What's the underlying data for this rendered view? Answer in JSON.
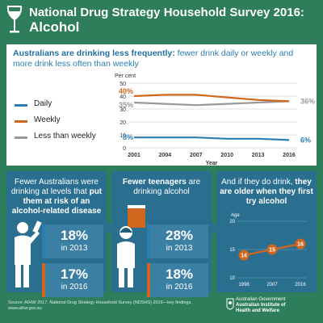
{
  "header": {
    "title_line1": "National Drug Strategy Household Survey 2016:",
    "title_line2": "Alcohol"
  },
  "top_panel": {
    "headline_bold": "Australians are drinking less frequently:",
    "headline_rest": "fewer drink daily or weekly and more drink less often than weekly"
  },
  "legend": {
    "daily": "Daily",
    "weekly": "Weekly",
    "less_than_weekly": "Less than weekly"
  },
  "colors": {
    "daily": "#2c7db3",
    "weekly": "#d1661f",
    "less_than_weekly": "#999999",
    "background": "#2e7d5b"
  },
  "panel1": {
    "text_normal": "Fewer Australians were drinking at levels that",
    "text_bold": "put them at risk of an alcohol-related disease",
    "stat1_value": "18%",
    "stat1_year": "in 2013",
    "stat2_value": "17%",
    "stat2_year": "in 2016"
  },
  "panel2": {
    "text_bold": "Fewer teenagers",
    "text_normal": "are drinking alcohol",
    "stat1_value": "28%",
    "stat1_year": "in 2013",
    "stat2_value": "18%",
    "stat2_year": "in 2016"
  },
  "panel3": {
    "text_normal": "And if they do drink,",
    "text_bold": "they are older when they first try alcohol"
  },
  "footer": {
    "source_line1": "Source: AIHW 2017. National Drug Strategy Household Survey (NDSHS) 2016—key findings.",
    "source_line2": "www.aihw.gov.au",
    "gov_line1": "Australian Government",
    "gov_line2": "Australian Institute of",
    "gov_line3": "Health and Welfare"
  },
  "chart_data": [
    {
      "type": "line",
      "title": "",
      "xlabel": "Year",
      "ylabel": "Per cent",
      "x": [
        2001,
        2004,
        2007,
        2010,
        2013,
        2016
      ],
      "ylim": [
        0,
        50
      ],
      "yticks": [
        0,
        10,
        20,
        30,
        40,
        50
      ],
      "series": [
        {
          "name": "Daily",
          "values": [
            8,
            8,
            8,
            7,
            7,
            6
          ],
          "start_label": "8%",
          "end_label": "6%"
        },
        {
          "name": "Weekly",
          "values": [
            40,
            41,
            41,
            39,
            37,
            36
          ],
          "start_label": "40%",
          "end_label": "36%"
        },
        {
          "name": "Less than weekly",
          "values": [
            35,
            34,
            33,
            34,
            35,
            36
          ],
          "start_label": "35%",
          "end_label": "36%"
        }
      ],
      "grid": true,
      "legend": "left"
    },
    {
      "type": "line",
      "title": "",
      "ylabel": "Age",
      "x": [
        1998,
        2007,
        2016
      ],
      "ylim": [
        10,
        20
      ],
      "yticks": [
        10,
        15,
        20
      ],
      "series": [
        {
          "name": "",
          "values": [
            14,
            15,
            16
          ],
          "labels": [
            "14",
            "15",
            "16"
          ]
        }
      ],
      "grid": true
    }
  ]
}
